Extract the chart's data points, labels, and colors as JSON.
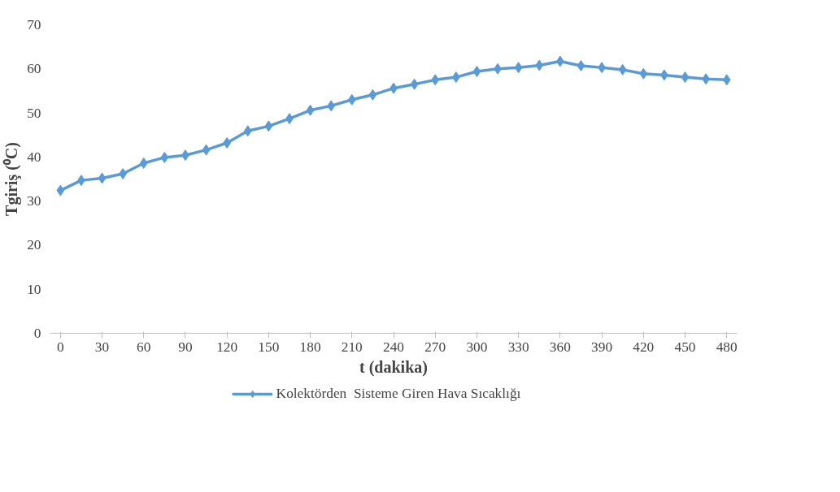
{
  "chart_data": {
    "type": "line",
    "xlabel": "t (dakika)",
    "ylabel": "Tgiriş (⁰C)",
    "x": [
      0,
      15,
      30,
      45,
      60,
      75,
      90,
      105,
      120,
      135,
      150,
      165,
      180,
      195,
      210,
      225,
      240,
      255,
      270,
      285,
      300,
      315,
      330,
      345,
      360,
      375,
      390,
      405,
      420,
      435,
      450,
      465,
      480
    ],
    "series": [
      {
        "name": "Kolektörden  Sisteme Giren Hava Sıcaklığı",
        "color": "#5b9bd5",
        "values": [
          32.4,
          34.7,
          35.2,
          36.2,
          38.6,
          39.9,
          40.4,
          41.6,
          43.2,
          45.9,
          47.0,
          48.7,
          50.6,
          51.6,
          53.0,
          54.1,
          55.6,
          56.5,
          57.5,
          58.1,
          59.4,
          60.0,
          60.3,
          60.8,
          61.7,
          60.7,
          60.3,
          59.8,
          58.9,
          58.6,
          58.1,
          57.7,
          57.5
        ]
      }
    ],
    "xlim": [
      -7.5,
      487.5
    ],
    "xticks": [
      0,
      30,
      60,
      90,
      120,
      150,
      180,
      210,
      240,
      270,
      300,
      330,
      360,
      390,
      420,
      450,
      480
    ],
    "ylim": [
      0,
      70
    ],
    "yticks": [
      0,
      10,
      20,
      30,
      40,
      50,
      60,
      70
    ],
    "grid": false,
    "legend": "bottom",
    "marker": "diamond",
    "line_style": "solid"
  }
}
